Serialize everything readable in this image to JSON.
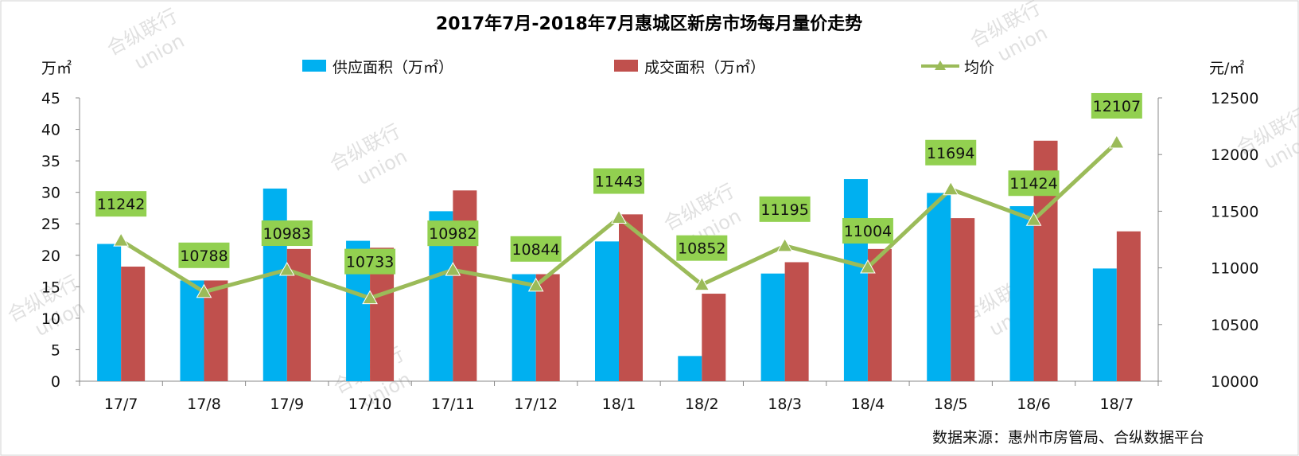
{
  "chart_data": {
    "type": "bar",
    "title": "2017年7月-2018年7月惠城区新房市场每月量价走势",
    "categories": [
      "17/7",
      "17/8",
      "17/9",
      "17/10",
      "17/11",
      "17/12",
      "18/1",
      "18/2",
      "18/3",
      "18/4",
      "18/5",
      "18/6",
      "18/7"
    ],
    "left_unit": "万㎡",
    "right_unit": "元/㎡",
    "ylim_left": [
      0,
      45
    ],
    "yticks_left": [
      0,
      5,
      10,
      15,
      20,
      25,
      30,
      35,
      40,
      45
    ],
    "ylim_right": [
      10000,
      12500
    ],
    "yticks_right": [
      10000,
      10500,
      11000,
      11500,
      12000,
      12500
    ],
    "grid": false,
    "legend_position": "top",
    "series": [
      {
        "name": "供应面积（万㎡）",
        "type": "bar",
        "axis": "left",
        "color": "#00b0f0",
        "values": [
          21.8,
          16.0,
          30.6,
          22.3,
          27.0,
          17.0,
          22.2,
          4.0,
          17.1,
          32.1,
          29.9,
          27.8,
          17.9
        ]
      },
      {
        "name": "成交面积（万㎡）",
        "type": "bar",
        "axis": "left",
        "color": "#c0504d",
        "values": [
          18.2,
          16.0,
          21.0,
          21.2,
          30.3,
          17.0,
          26.5,
          13.9,
          18.9,
          21.0,
          25.9,
          38.2,
          23.8
        ]
      },
      {
        "name": "均价",
        "type": "line",
        "axis": "right",
        "color": "#9bbb59",
        "label_bg": "#92d050",
        "values": [
          11242,
          10788,
          10983,
          10733,
          10982,
          10844,
          11443,
          10852,
          11195,
          11004,
          11694,
          11424,
          12107
        ]
      }
    ],
    "source": "数据来源：惠州市房管局、合纵数据平台",
    "watermark": [
      "合纵联行",
      "union"
    ]
  }
}
